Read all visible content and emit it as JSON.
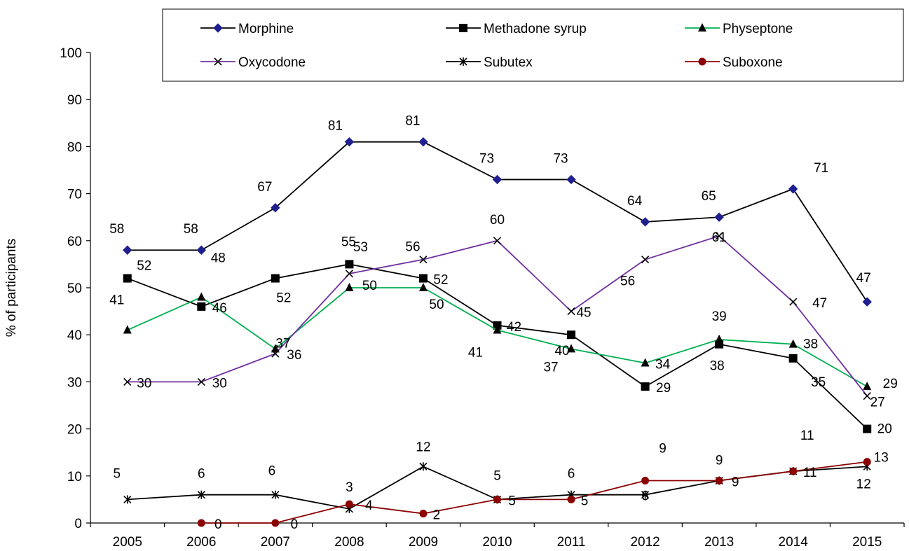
{
  "chart_data": {
    "type": "line",
    "title": "",
    "xlabel": "",
    "ylabel": "% of participants",
    "ylim": [
      0,
      100
    ],
    "yticks": [
      0,
      10,
      20,
      30,
      40,
      50,
      60,
      70,
      80,
      90,
      100
    ],
    "categories": [
      "2005",
      "2006",
      "2007",
      "2008",
      "2009",
      "2010",
      "2011",
      "2012",
      "2013",
      "2014",
      "2015"
    ],
    "grid": false,
    "legend_position": "top",
    "series": [
      {
        "name": "Morphine",
        "color": "#000000",
        "marker_color": "#1f1f8f",
        "marker": "diamond",
        "values": [
          58,
          58,
          67,
          81,
          81,
          73,
          73,
          64,
          65,
          71,
          47
        ]
      },
      {
        "name": "Methadone syrup",
        "color": "#000000",
        "marker_color": "#000000",
        "marker": "square",
        "values": [
          52,
          46,
          52,
          55,
          52,
          42,
          40,
          29,
          38,
          35,
          20
        ]
      },
      {
        "name": "Physeptone",
        "color": "#00b050",
        "marker_color": "#000000",
        "marker": "triangle",
        "values": [
          41,
          48,
          37,
          50,
          50,
          41,
          37,
          34,
          39,
          38,
          29
        ]
      },
      {
        "name": "Oxycodone",
        "color": "#7030a0",
        "marker_color": "#000000",
        "marker": "x",
        "values": [
          30,
          30,
          36,
          53,
          56,
          60,
          45,
          56,
          61,
          47,
          27
        ]
      },
      {
        "name": "Subutex",
        "color": "#000000",
        "marker_color": "#000000",
        "marker": "star",
        "values": [
          5,
          6,
          6,
          3,
          12,
          5,
          6,
          6,
          9,
          11,
          12
        ]
      },
      {
        "name": "Suboxone",
        "color": "#8b0000",
        "marker_color": "#8b0000",
        "marker": "circle",
        "values": [
          null,
          0,
          0,
          4,
          2,
          5,
          5,
          9,
          9,
          11,
          13
        ]
      }
    ]
  }
}
